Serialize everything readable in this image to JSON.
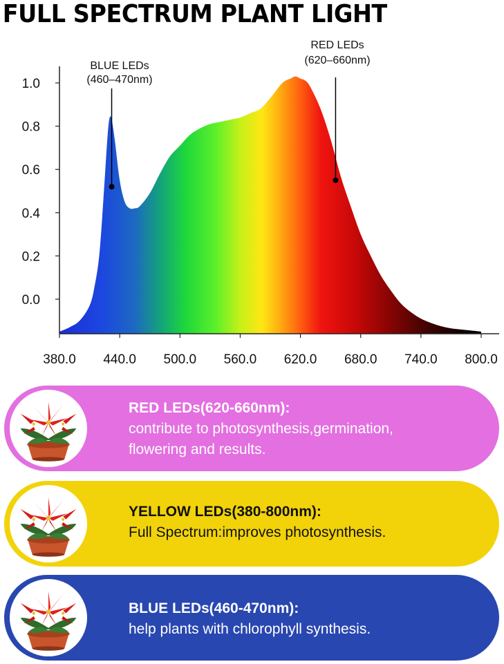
{
  "page": {
    "title": "FULL SPECTRUM PLANT LIGHT"
  },
  "chart_data": {
    "type": "area",
    "title": "FULL SPECTRUM PLANT LIGHT",
    "xlabel": "",
    "ylabel": "",
    "xlim": [
      380,
      800
    ],
    "ylim": [
      -0.15,
      1.05
    ],
    "x_ticks": [
      "380.0",
      "440.0",
      "500.0",
      "560.0",
      "620.0",
      "680.0",
      "740.0",
      "800.0"
    ],
    "y_ticks": [
      "1.0",
      "0.8",
      "0.6",
      "0.4",
      "0.2",
      "0.0"
    ],
    "x_tick_values": [
      380,
      440,
      500,
      560,
      620,
      680,
      740,
      800
    ],
    "y_tick_values": [
      1.0,
      0.8,
      0.6,
      0.4,
      0.2,
      0.0
    ],
    "grid": false,
    "series": [
      {
        "x": [
          380,
          390,
          400,
          410,
          415,
          420,
          425,
          428,
          430,
          432,
          435,
          440,
          445,
          450,
          455,
          460,
          470,
          480,
          490,
          500,
          510,
          520,
          530,
          540,
          550,
          560,
          570,
          580,
          590,
          600,
          605,
          610,
          615,
          620,
          625,
          630,
          640,
          650,
          660,
          670,
          680,
          690,
          700,
          710,
          720,
          730,
          740,
          750,
          760,
          770,
          780,
          790,
          800
        ],
        "y": [
          -0.15,
          -0.13,
          -0.1,
          -0.03,
          0.06,
          0.22,
          0.55,
          0.76,
          0.84,
          0.83,
          0.74,
          0.55,
          0.45,
          0.42,
          0.42,
          0.43,
          0.49,
          0.58,
          0.66,
          0.71,
          0.76,
          0.79,
          0.81,
          0.82,
          0.83,
          0.84,
          0.86,
          0.88,
          0.93,
          0.99,
          1.01,
          1.02,
          1.03,
          1.02,
          1.01,
          0.98,
          0.88,
          0.74,
          0.57,
          0.43,
          0.3,
          0.2,
          0.11,
          0.04,
          -0.02,
          -0.06,
          -0.09,
          -0.11,
          -0.125,
          -0.135,
          -0.14,
          -0.145,
          -0.15
        ]
      }
    ],
    "annotations": [
      {
        "label": "BLUE LEDs",
        "sublabel": "(460–470nm)",
        "x": 432,
        "y": 0.52
      },
      {
        "label": "RED LEDs",
        "sublabel": "(620–660nm)",
        "x": 655,
        "y": 0.55
      }
    ]
  },
  "cards": [
    {
      "heading": "RED LEDs(620-660nm):",
      "line1": "contribute to photosynthesis,germination,",
      "line2": "flowering and results.",
      "color": "#e36fe0"
    },
    {
      "heading": "YELLOW LEDs(380-800nm):",
      "line1": "Full Spectrum:improves photosynthesis.",
      "color": "#f2d30a"
    },
    {
      "heading": "BLUE LEDs(460-470nm):",
      "line1": "help plants with chlorophyll synthesis.",
      "color": "#2947b0"
    }
  ],
  "icons": {
    "plant": "poinsettia-plant-icon"
  }
}
